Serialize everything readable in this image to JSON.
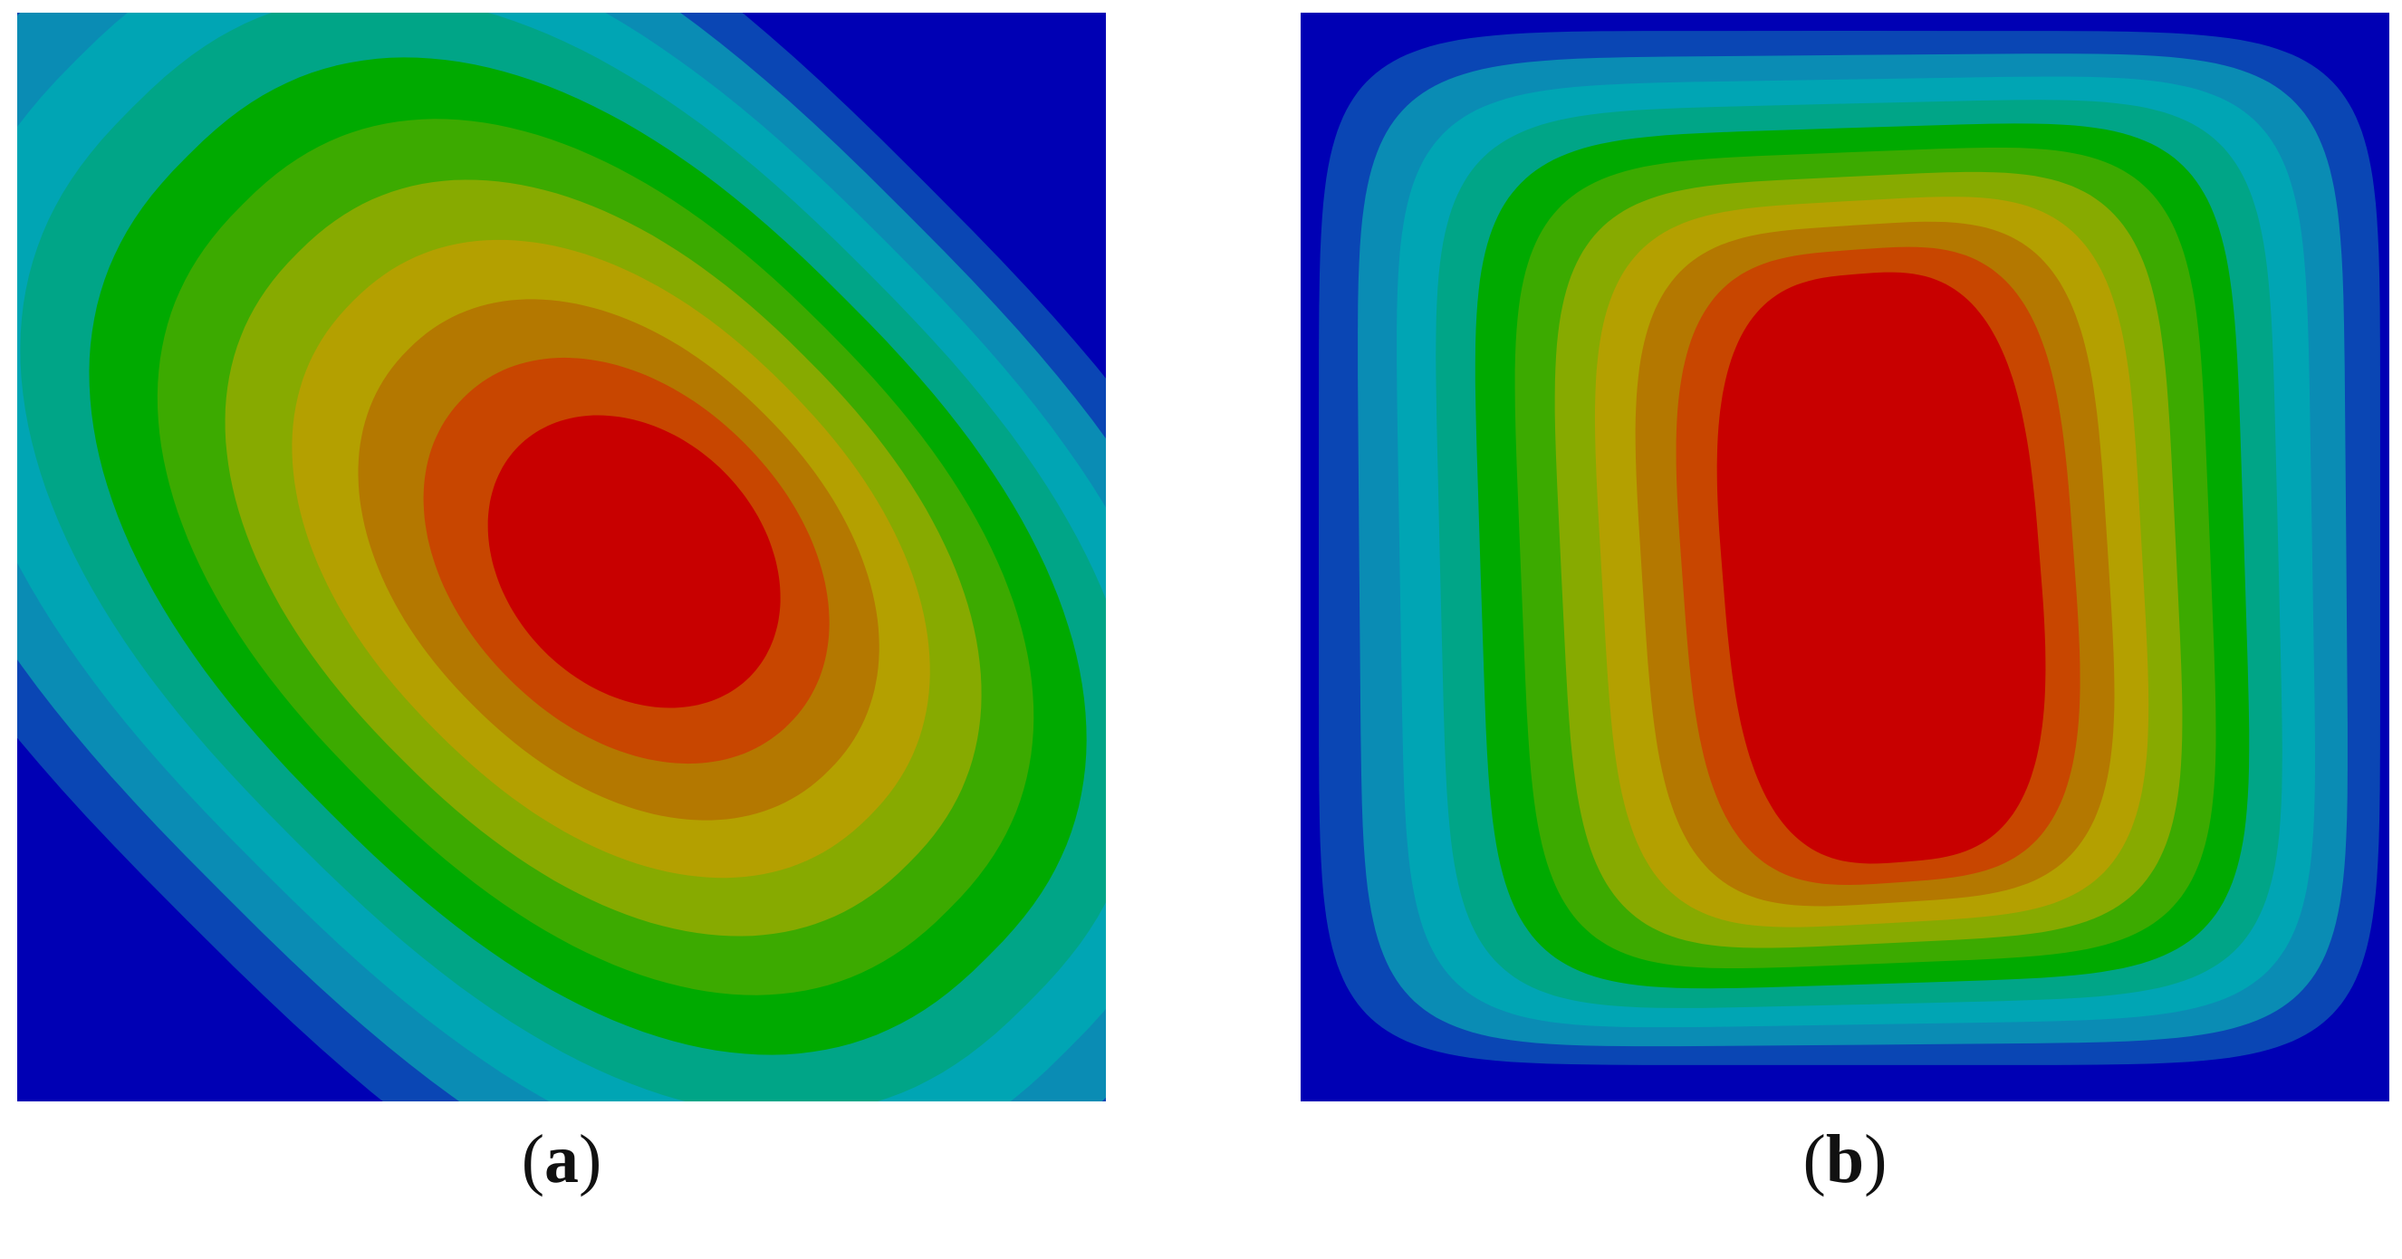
{
  "colors": {
    "levels": [
      "#0000b4",
      "#0a46b4",
      "#0a8cb4",
      "#00a5b4",
      "#00a587",
      "#00aa00",
      "#3caa00",
      "#87aa00",
      "#b4a000",
      "#b47800",
      "#c84600",
      "#c80000"
    ]
  },
  "panels": [
    {
      "id": "a",
      "caption_open": "(",
      "caption_letter": "a",
      "caption_close": ")"
    },
    {
      "id": "b",
      "caption_open": "(",
      "caption_letter": "b",
      "caption_close": ")"
    }
  ]
}
